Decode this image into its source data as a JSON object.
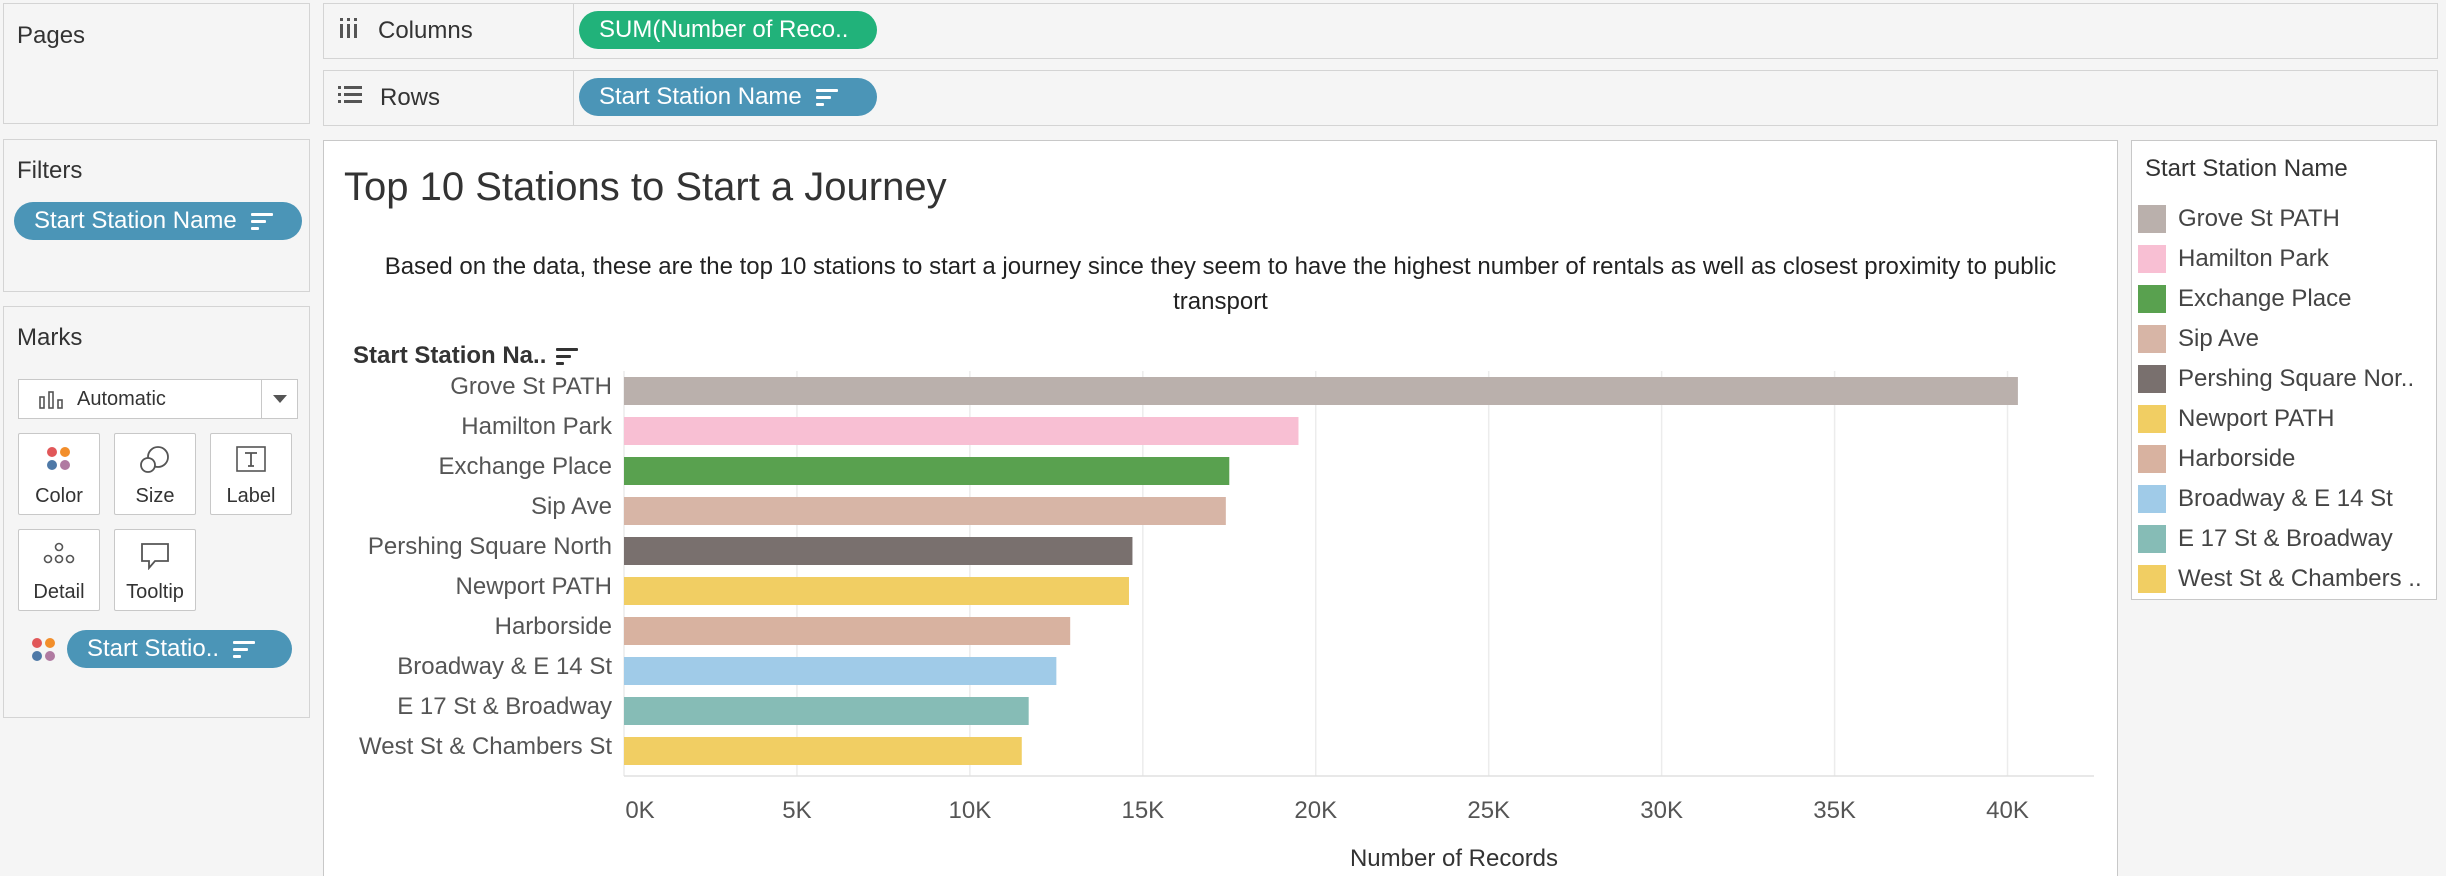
{
  "pages": {
    "title": "Pages"
  },
  "filters": {
    "title": "Filters",
    "pill": "Start Station Name"
  },
  "marks": {
    "title": "Marks",
    "type_select": "Automatic",
    "buttons": {
      "color": "Color",
      "size": "Size",
      "label": "Label",
      "detail": "Detail",
      "tooltip": "Tooltip"
    },
    "pill": "Start Statio.."
  },
  "shelves": {
    "columns": {
      "label": "Columns",
      "pill": "SUM(Number of Reco.."
    },
    "rows": {
      "label": "Rows",
      "pill": "Start Station Name"
    }
  },
  "view": {
    "title": "Top 10 Stations to Start a Journey",
    "subtitle": "Based on the data, these are the top 10 stations to start a journey since they seem to have the highest number of rentals as well as closest proximity to public transport",
    "row_header": "Start Station Na.."
  },
  "chart_data": {
    "type": "bar",
    "orientation": "horizontal",
    "title": "Top 10 Stations to Start a Journey",
    "xlabel": "Number of Records",
    "ylabel": "Start Station Na..",
    "xlim": [
      0,
      42500
    ],
    "xticks": [
      0,
      5000,
      10000,
      15000,
      20000,
      25000,
      30000,
      35000,
      40000
    ],
    "xtick_labels": [
      "0K",
      "5K",
      "10K",
      "15K",
      "20K",
      "25K",
      "30K",
      "35K",
      "40K"
    ],
    "grid": "vertical",
    "categories": [
      "Grove St PATH",
      "Hamilton Park",
      "Exchange Place",
      "Sip Ave",
      "Pershing Square North",
      "Newport PATH",
      "Harborside",
      "Broadway & E 14 St",
      "E 17 St & Broadway",
      "West St & Chambers St"
    ],
    "values": [
      40300,
      19500,
      17500,
      17400,
      14700,
      14600,
      12900,
      12500,
      11700,
      11500
    ],
    "colors": [
      "#bab0ac",
      "#f8bfd3",
      "#59a14f",
      "#d7b5a6",
      "#79706e",
      "#f1ce63",
      "#d8b2a0",
      "#a0cbe8",
      "#86bcb6",
      "#f1ce63"
    ]
  },
  "legend": {
    "title": "Start Station Name",
    "items": [
      {
        "label": "Grove St PATH",
        "color": "#bab0ac"
      },
      {
        "label": "Hamilton Park",
        "color": "#f8bfd3"
      },
      {
        "label": "Exchange Place",
        "color": "#59a14f"
      },
      {
        "label": "Sip Ave",
        "color": "#d7b5a6"
      },
      {
        "label": "Pershing Square Nor..",
        "color": "#79706e"
      },
      {
        "label": "Newport PATH",
        "color": "#f1ce63"
      },
      {
        "label": "Harborside",
        "color": "#d8b2a0"
      },
      {
        "label": "Broadway & E 14 St",
        "color": "#a0cbe8"
      },
      {
        "label": "E 17 St & Broadway",
        "color": "#86bcb6"
      },
      {
        "label": "West St & Chambers ..",
        "color": "#f1ce63"
      }
    ]
  }
}
